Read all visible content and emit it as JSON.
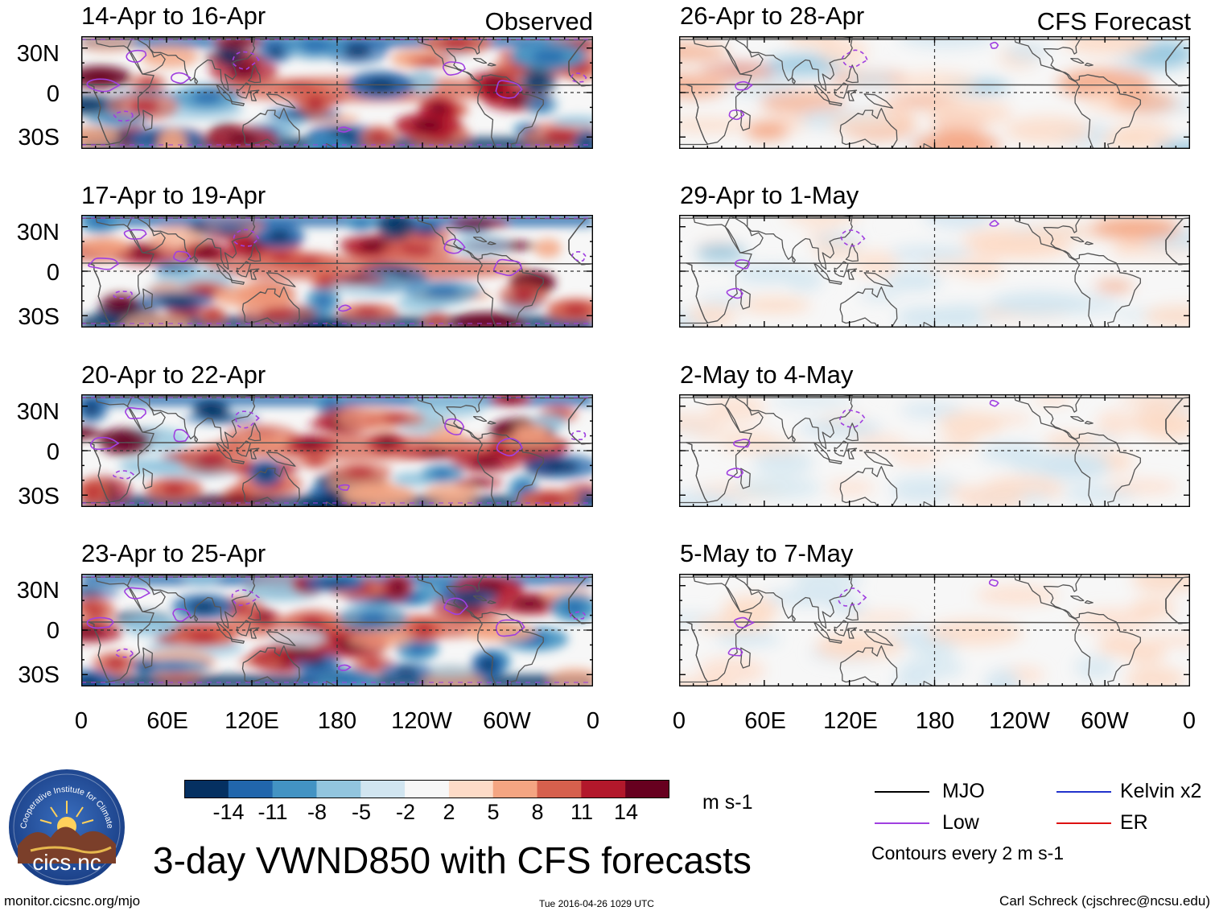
{
  "figure": {
    "title": "3-day VWND850 with CFS forecasts",
    "observed_label": "Observed",
    "forecast_label": "CFS Forecast",
    "lat_labels": [
      "30N",
      "0",
      "30S"
    ],
    "lon_labels": [
      "0",
      "60E",
      "120E",
      "180",
      "120W",
      "60W",
      "0"
    ],
    "observed_panels": [
      {
        "title": "14-Apr to 16-Apr",
        "intensity": 1.0,
        "seed": 11
      },
      {
        "title": "17-Apr to 19-Apr",
        "intensity": 1.0,
        "seed": 23
      },
      {
        "title": "20-Apr to 22-Apr",
        "intensity": 1.0,
        "seed": 37
      },
      {
        "title": "23-Apr to 25-Apr",
        "intensity": 0.9,
        "seed": 41
      }
    ],
    "forecast_panels": [
      {
        "title": "26-Apr to 28-Apr",
        "intensity": 0.45,
        "seed": 53
      },
      {
        "title": "29-Apr to 1-May",
        "intensity": 0.32,
        "seed": 67
      },
      {
        "title": "2-May to 4-May",
        "intensity": 0.3,
        "seed": 71
      },
      {
        "title": "5-May to 7-May",
        "intensity": 0.22,
        "seed": 83
      }
    ]
  },
  "colorbar": {
    "units": "m s-1",
    "tick_labels": [
      "-14",
      "-11",
      "-8",
      "-5",
      "-2",
      "2",
      "5",
      "8",
      "11",
      "14"
    ],
    "colors": [
      "#053061",
      "#2166ac",
      "#4393c3",
      "#92c5de",
      "#d1e5f0",
      "#f7f7f7",
      "#fddbc7",
      "#f4a582",
      "#d6604d",
      "#b2182b",
      "#67001f"
    ]
  },
  "legend": {
    "items": [
      {
        "label": "MJO",
        "color": "#000000"
      },
      {
        "label": "Kelvin x2",
        "color": "#2233cc"
      },
      {
        "label": "Low",
        "color": "#a040e0"
      },
      {
        "label": "ER",
        "color": "#dd1111"
      }
    ],
    "note": "Contours every 2 m s-1"
  },
  "logo": {
    "arc_text": "Cooperative Institute for Climate and Satellites",
    "name": "cics.nc"
  },
  "footer": {
    "left": "monitor.cicsnc.org/mjo",
    "center": "Tue 2016-04-26 1029 UTC",
    "right": "Carl Schreck (cjschrec@ncsu.edu)"
  }
}
